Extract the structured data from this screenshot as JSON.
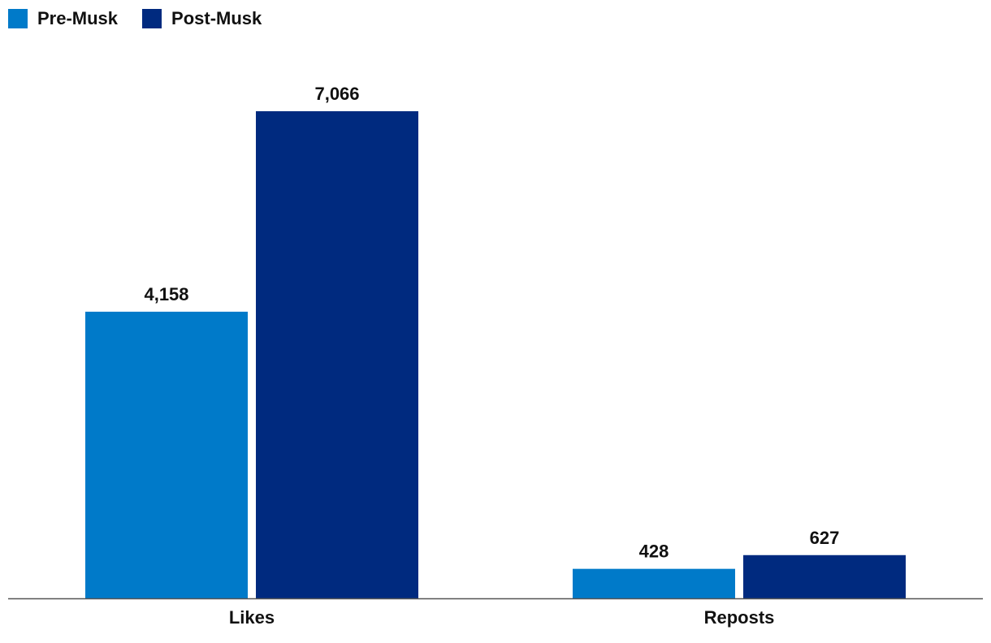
{
  "legend": {
    "items": [
      {
        "label": "Pre-Musk",
        "color": "#007ac9"
      },
      {
        "label": "Post-Musk",
        "color": "#002a7f"
      }
    ]
  },
  "chart_data": {
    "type": "bar",
    "categories": [
      "Likes",
      "Reposts"
    ],
    "series": [
      {
        "name": "Pre-Musk",
        "values": [
          4158,
          428
        ],
        "labels": [
          "4,158",
          "428"
        ],
        "color": "#007ac9"
      },
      {
        "name": "Post-Musk",
        "values": [
          7066,
          627
        ],
        "labels": [
          "7,066",
          "627"
        ],
        "color": "#002a7f"
      }
    ],
    "title": "",
    "xlabel": "",
    "ylabel": "",
    "ylim": [
      0,
      7066
    ],
    "grid": false,
    "legend_position": "top-left",
    "axis_color": "#555555"
  }
}
